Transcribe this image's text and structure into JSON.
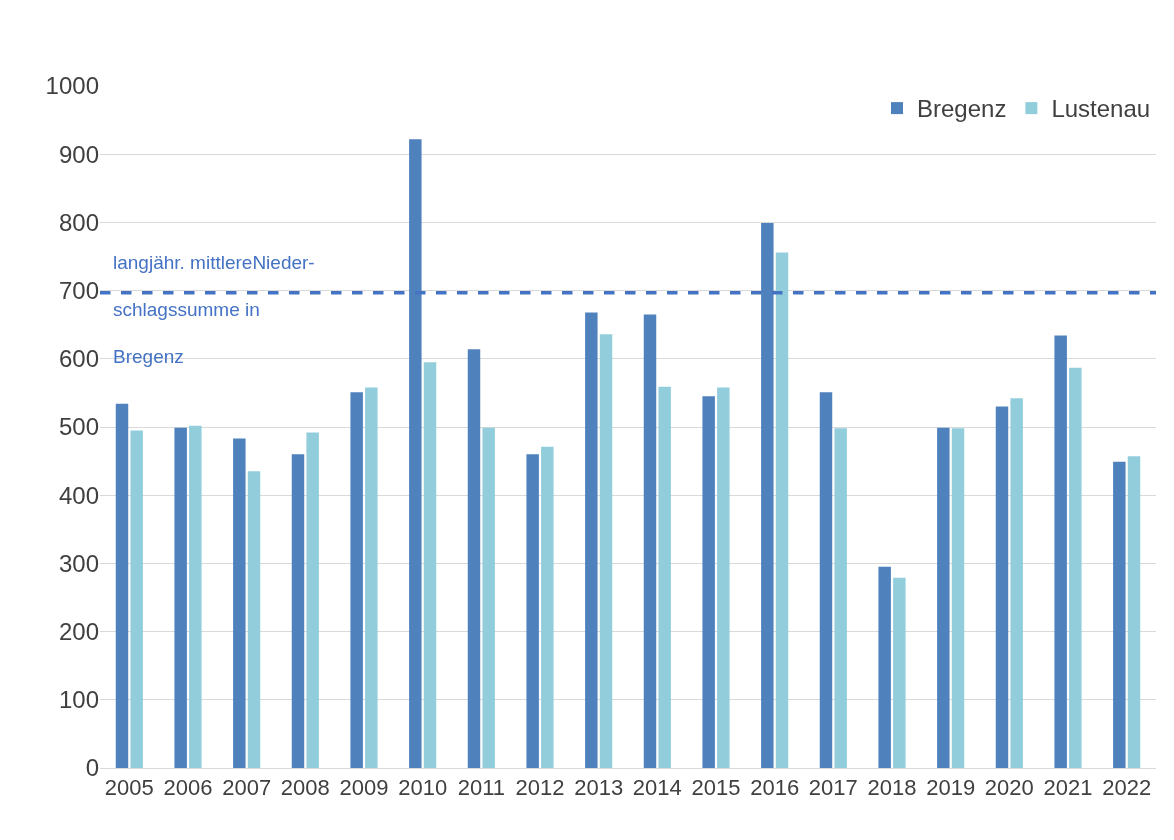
{
  "chart_data": {
    "type": "bar",
    "categories": [
      "2005",
      "2006",
      "2007",
      "2008",
      "2009",
      "2010",
      "2011",
      "2012",
      "2013",
      "2014",
      "2015",
      "2016",
      "2017",
      "2018",
      "2019",
      "2020",
      "2021",
      "2022"
    ],
    "series": [
      {
        "name": "Bregenz",
        "color": "#4f81bd",
        "values": [
          534,
          499,
          483,
          460,
          551,
          922,
          614,
          460,
          668,
          665,
          545,
          799,
          551,
          295,
          499,
          530,
          634,
          449
        ]
      },
      {
        "name": "Lustenau",
        "color": "#92cddc",
        "values": [
          495,
          502,
          435,
          492,
          558,
          595,
          499,
          471,
          636,
          559,
          558,
          756,
          498,
          279,
          498,
          542,
          587,
          457
        ]
      }
    ],
    "ylim": [
      0,
      1000
    ],
    "yticks": [
      0,
      100,
      200,
      300,
      400,
      500,
      600,
      700,
      800,
      900,
      1000
    ],
    "grid": "y",
    "legend": "top right",
    "ref_lines": [
      {
        "axis": "y",
        "value": 697,
        "label": "langjähr. mittlereNieder-\nschlagssumme in\nBregenz",
        "color": "#4472c4",
        "line_style": "dashed"
      }
    ]
  }
}
